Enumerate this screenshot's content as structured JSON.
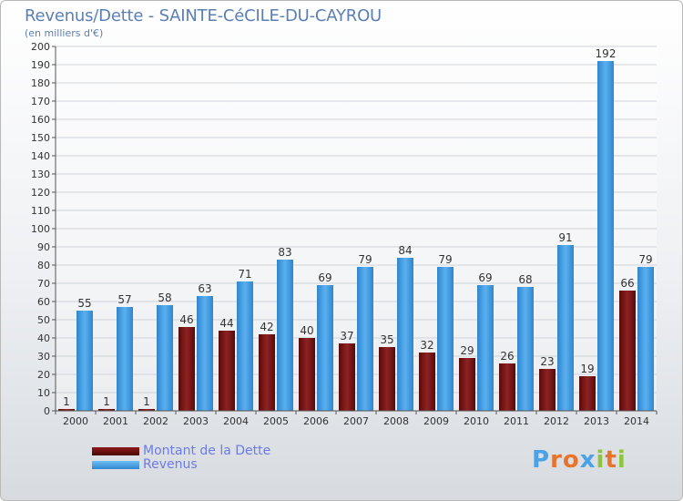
{
  "title": "Revenus/Dette - SAINTE-CéCILE-DU-CAYROU",
  "subtitle": "(en milliers d'€)",
  "logo_text": "Proxiti",
  "colors": {
    "dette": "#6b0d0d",
    "revenus": "#4aa3e6",
    "legend_text": "#6b7be8",
    "title": "#5b7fb3"
  },
  "chart_data": {
    "type": "bar",
    "categories": [
      "2000",
      "2001",
      "2002",
      "2003",
      "2004",
      "2005",
      "2006",
      "2007",
      "2008",
      "2009",
      "2010",
      "2011",
      "2012",
      "2013",
      "2014"
    ],
    "series": [
      {
        "name": "Montant de la Dette",
        "values": [
          1,
          1,
          1,
          46,
          44,
          42,
          40,
          37,
          35,
          32,
          29,
          26,
          23,
          19,
          66
        ]
      },
      {
        "name": "Revenus",
        "values": [
          55,
          57,
          58,
          63,
          71,
          83,
          69,
          79,
          84,
          79,
          69,
          68,
          91,
          192,
          79
        ]
      }
    ],
    "ylim": [
      0,
      200
    ],
    "ytick_step": 10,
    "grid": true,
    "legend_position": "bottom-left"
  }
}
